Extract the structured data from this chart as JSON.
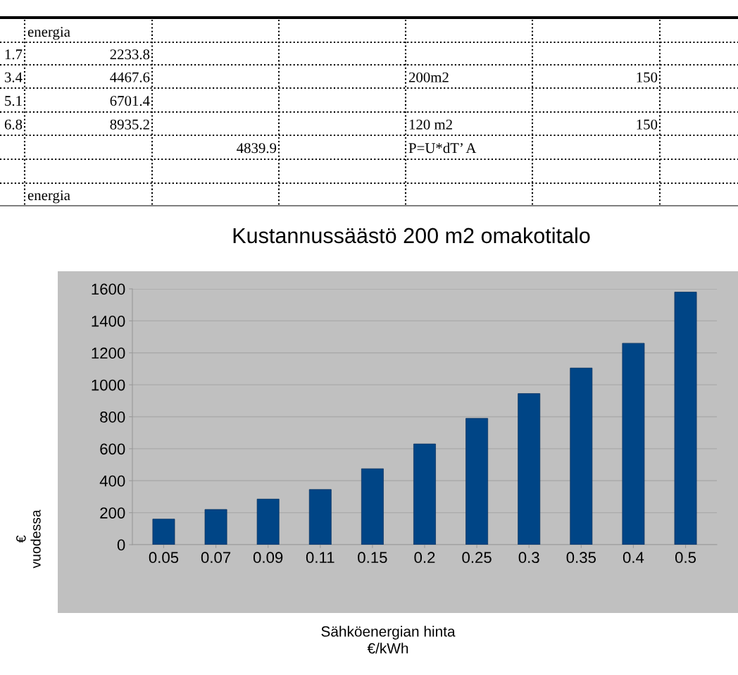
{
  "chart_data": {
    "type": "bar",
    "title": "Kustannussäästö 200 m2 omakotitalo",
    "xlabel": "Sähköenergian hinta\n€/kWh",
    "ylabel": "€\nvuodessa",
    "categories": [
      "0.05",
      "0.07",
      "0.09",
      "0.11",
      "0.15",
      "0.2",
      "0.25",
      "0.3",
      "0.35",
      "0.4",
      "0.5"
    ],
    "values": [
      160,
      220,
      285,
      345,
      475,
      630,
      790,
      945,
      1105,
      1260,
      1580
    ],
    "color": "#004586",
    "ylim": [
      0,
      1600
    ],
    "yticks": [
      0,
      200,
      400,
      600,
      800,
      1000,
      1200,
      1400,
      1600
    ],
    "grid": "y",
    "legend": false,
    "annotations": [
      "energia",
      "1.7",
      "2233.8",
      "3.4",
      "4467.6",
      "200m2",
      "150",
      "5.1",
      "6701.4",
      "6.8",
      "8935.2",
      "120 m2",
      "150",
      "4839.9",
      "P=U*dT’ A",
      "energia"
    ]
  }
}
